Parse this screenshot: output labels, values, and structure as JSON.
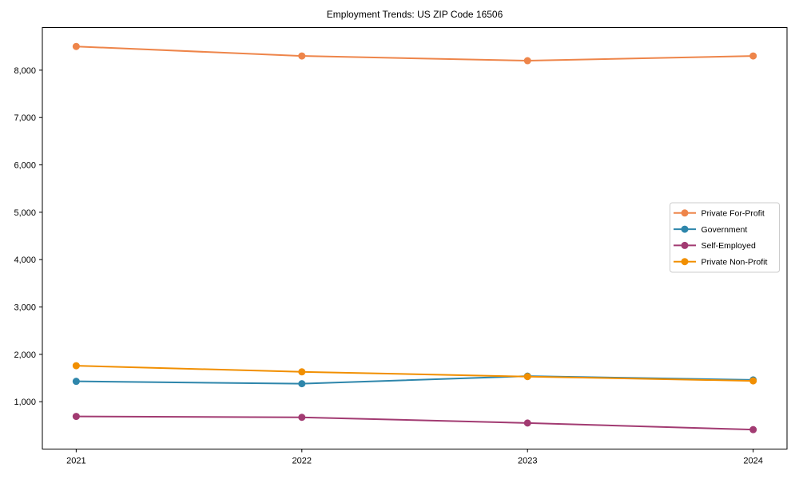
{
  "chart_data": {
    "type": "line",
    "title": "Employment Trends: US ZIP Code 16506",
    "x": [
      2021,
      2022,
      2023,
      2024
    ],
    "x_tick_labels": [
      "2021",
      "2022",
      "2023",
      "2024"
    ],
    "y_ticks": [
      1000,
      2000,
      3000,
      4000,
      5000,
      6000,
      7000,
      8000
    ],
    "y_tick_labels": [
      "1,000",
      "2,000",
      "3,000",
      "4,000",
      "5,000",
      "6,000",
      "7,000",
      "8,000"
    ],
    "xlim": [
      2020.85,
      2024.15
    ],
    "ylim": [
      0,
      8900
    ],
    "grid": false,
    "legend_position": "center right",
    "axis_color": "#000000",
    "text_color": "#000000",
    "series": [
      {
        "name": "Private For-Profit",
        "color": "#EE854A",
        "values": [
          8500,
          8300,
          8200,
          8300
        ]
      },
      {
        "name": "Government",
        "color": "#2E86AB",
        "values": [
          1430,
          1380,
          1540,
          1460
        ]
      },
      {
        "name": "Self-Employed",
        "color": "#A23B72",
        "values": [
          690,
          670,
          550,
          410
        ]
      },
      {
        "name": "Private Non-Profit",
        "color": "#F18F01",
        "values": [
          1760,
          1630,
          1530,
          1440
        ]
      }
    ]
  }
}
